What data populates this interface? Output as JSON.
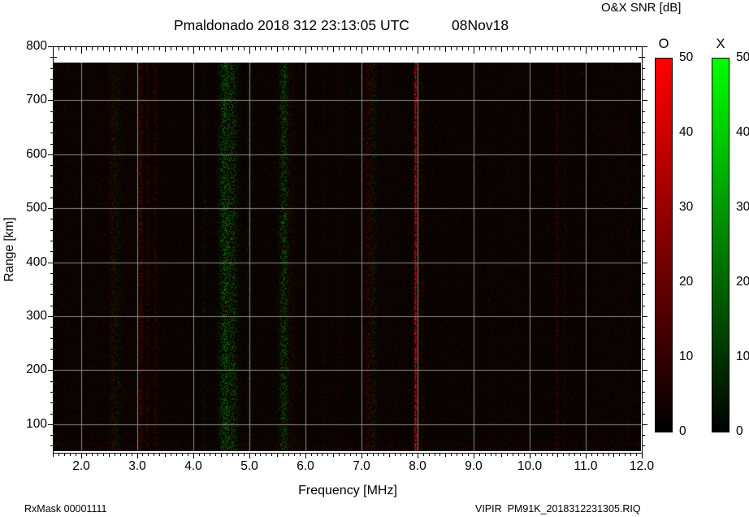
{
  "header": {
    "title": "Pmaldonado 2018 312 23:13:05 UTC",
    "date_label": "08Nov18",
    "colorbar_title": "O&X SNR [dB]"
  },
  "footer": {
    "rx_mask": "RxMask 00001111",
    "file_name": "VIPIR  PM91K_2018312231305.RIQ"
  },
  "chart_data": {
    "type": "heatmap",
    "title": "Pmaldonado 2018 312 23:13:05 UTC  08Nov18",
    "station": "Pmaldonado",
    "timestamp": "2018 312 23:13:05 UTC",
    "xlabel": "Frequency [MHz]",
    "ylabel": "Range [km]",
    "xlim": [
      1.5,
      12.0
    ],
    "ylim": [
      47,
      800
    ],
    "data_top_km": 770,
    "x_ticks": [
      2.0,
      3.0,
      4.0,
      5.0,
      6.0,
      7.0,
      8.0,
      9.0,
      10.0,
      11.0,
      12.0
    ],
    "x_tick_labels": [
      "2.0",
      "3.0",
      "4.0",
      "5.0",
      "6.0",
      "7.0",
      "8.0",
      "9.0",
      "10.0",
      "11.0",
      "12.0"
    ],
    "x_minor_step": 0.1,
    "y_ticks": [
      100,
      200,
      300,
      400,
      500,
      600,
      700,
      800
    ],
    "y_tick_labels": [
      "100",
      "200",
      "300",
      "400",
      "500",
      "600",
      "700",
      "800"
    ],
    "y_minor_step": 20,
    "grid": true,
    "grid_color": "#9a9a9a",
    "background_color": "#000000",
    "content_summary": "Mostly dark background noise; faint vertical RFI streaks: green (X-mode) bands near 2.6, 4.5-4.8, 5.6, 7.2 MHz; red (O-mode) bands near 2.5, 3.0-3.3, 7.1, 10.5 MHz; bright narrow red line at ~8.0 MHz spanning all ranges.",
    "noise": {
      "seed": 42,
      "base_red": 20,
      "base_green": 7,
      "speck_r": 0.004,
      "speck_g": 0.002
    },
    "streaks": [
      {
        "mhz": 2.08,
        "w": 0.5,
        "ch": "r",
        "i": 0.05
      },
      {
        "mhz": 2.55,
        "w": 0.05,
        "ch": "r",
        "i": 0.22
      },
      {
        "mhz": 2.62,
        "w": 0.1,
        "ch": "g",
        "i": 0.16
      },
      {
        "mhz": 2.9,
        "w": 0.35,
        "ch": "r",
        "i": 0.06
      },
      {
        "mhz": 3.06,
        "w": 0.04,
        "ch": "r",
        "i": 0.38
      },
      {
        "mhz": 3.18,
        "w": 0.03,
        "ch": "r",
        "i": 0.25
      },
      {
        "mhz": 3.32,
        "w": 0.04,
        "ch": "r",
        "i": 0.28
      },
      {
        "mhz": 4.2,
        "w": 0.05,
        "ch": "g",
        "i": 0.12
      },
      {
        "mhz": 4.56,
        "w": 0.1,
        "ch": "g",
        "i": 0.5
      },
      {
        "mhz": 4.72,
        "w": 0.08,
        "ch": "g",
        "i": 0.34
      },
      {
        "mhz": 5.0,
        "w": 0.05,
        "ch": "g",
        "i": 0.15
      },
      {
        "mhz": 5.62,
        "w": 0.09,
        "ch": "g",
        "i": 0.42
      },
      {
        "mhz": 5.78,
        "w": 0.05,
        "ch": "r",
        "i": 0.16
      },
      {
        "mhz": 6.35,
        "w": 0.03,
        "ch": "r",
        "i": 0.12
      },
      {
        "mhz": 6.6,
        "w": 0.05,
        "ch": "r",
        "i": 0.1
      },
      {
        "mhz": 7.12,
        "w": 0.07,
        "ch": "r",
        "i": 0.3
      },
      {
        "mhz": 7.22,
        "w": 0.06,
        "ch": "g",
        "i": 0.2
      },
      {
        "mhz": 7.5,
        "w": 0.4,
        "ch": "r",
        "i": 0.05
      },
      {
        "mhz": 7.97,
        "w": 0.025,
        "ch": "r",
        "i": 1.1
      },
      {
        "mhz": 8.08,
        "w": 0.04,
        "ch": "r",
        "i": 0.22
      },
      {
        "mhz": 9.3,
        "w": 0.05,
        "ch": "r",
        "i": 0.08
      },
      {
        "mhz": 9.75,
        "w": 0.25,
        "ch": "r",
        "i": 0.04
      },
      {
        "mhz": 10.5,
        "w": 0.035,
        "ch": "r",
        "i": 0.3
      },
      {
        "mhz": 10.64,
        "w": 0.03,
        "ch": "r",
        "i": 0.18
      },
      {
        "mhz": 11.4,
        "w": 0.3,
        "ch": "r",
        "i": 0.05
      },
      {
        "mhz": 11.75,
        "w": 0.04,
        "ch": "r",
        "i": 0.12
      }
    ]
  },
  "colorbars": {
    "title": "O&X SNR [dB]",
    "min": 0,
    "max": 50,
    "unit": "dB",
    "bars": [
      {
        "label": "O",
        "top_color": "#ff0000",
        "bottom_color": "#000000",
        "ticks": [
          "50",
          "40",
          "30",
          "20",
          "10",
          "0"
        ]
      },
      {
        "label": "X",
        "top_color": "#00ff00",
        "bottom_color": "#000000",
        "ticks": [
          "50",
          "40",
          "30",
          "20",
          "10",
          "0"
        ]
      }
    ]
  }
}
